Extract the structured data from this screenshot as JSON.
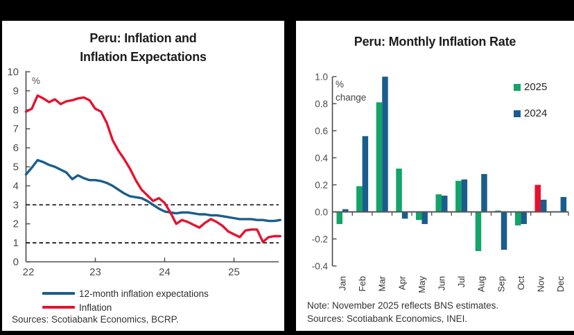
{
  "colors": {
    "background": "#000000",
    "panel": "#ffffff",
    "red": "#e8112d",
    "blue": "#1a5d8c",
    "green": "#12a468",
    "axis": "#4a4a4b",
    "zero_line": "#55565a",
    "tick_text": "#4a4a4a",
    "label_text": "#333333"
  },
  "left_panel": {
    "title_line1": "Peru: Inflation and",
    "title_line2": "Inflation Expectations",
    "axis_unit": "%",
    "source": "Sources: Scotiabank Economics, BCRP."
  },
  "right_panel": {
    "title": "Peru: Monthly Inflation Rate",
    "axis_unit_line1": "%",
    "axis_unit_line2": "change",
    "note": "Note: November 2025 reflects BNS estimates.",
    "source": "Sources: Scotiabank Economics, INEI."
  },
  "chart_data": [
    {
      "type": "line",
      "title": "Peru: Inflation and Inflation Expectations",
      "ylabel": "%",
      "ylim": [
        0,
        10
      ],
      "y_ticks": [
        0,
        1,
        2,
        3,
        4,
        5,
        6,
        7,
        8,
        9,
        10
      ],
      "x_tick_labels": [
        "22",
        "23",
        "24",
        "25"
      ],
      "x_tick_values": [
        22,
        23,
        24,
        25
      ],
      "x_start": 22.0,
      "x_interval_years": 0.08333,
      "reference_dashed_lines": [
        1,
        3
      ],
      "grid": false,
      "legend_position": "bottom",
      "series": [
        {
          "name": "12-month inflation expectations",
          "color": "#1a5d8c",
          "values": [
            4.6,
            4.95,
            5.35,
            5.25,
            5.1,
            5.0,
            4.85,
            4.7,
            4.35,
            4.55,
            4.4,
            4.3,
            4.3,
            4.25,
            4.15,
            4.0,
            3.8,
            3.6,
            3.45,
            3.4,
            3.35,
            3.2,
            3.0,
            2.8,
            2.65,
            2.6,
            2.55,
            2.6,
            2.6,
            2.55,
            2.5,
            2.5,
            2.45,
            2.45,
            2.4,
            2.35,
            2.3,
            2.25,
            2.25,
            2.25,
            2.2,
            2.2,
            2.15,
            2.15,
            2.2
          ]
        },
        {
          "name": "Inflation",
          "color": "#e8112d",
          "values": [
            7.9,
            8.05,
            8.75,
            8.6,
            8.4,
            8.55,
            8.3,
            8.45,
            8.5,
            8.6,
            8.65,
            8.5,
            8.05,
            7.9,
            7.3,
            6.4,
            5.85,
            5.4,
            4.9,
            4.3,
            3.8,
            3.5,
            3.2,
            3.35,
            3.1,
            2.6,
            2.0,
            2.2,
            2.1,
            1.95,
            1.8,
            2.05,
            2.25,
            2.1,
            1.9,
            1.6,
            1.45,
            1.3,
            1.65,
            1.7,
            1.7,
            1.05,
            1.3,
            1.35,
            1.35
          ]
        }
      ],
      "source": "Sources: Scotiabank Economics, BCRP."
    },
    {
      "type": "bar",
      "title": "Peru: Monthly Inflation Rate",
      "ylabel": "% change",
      "ylim": [
        -0.4,
        1.0
      ],
      "y_tick_labels": [
        "1.0",
        "0.8",
        "0.6",
        "0.4",
        "0.2",
        "0.0",
        "-0.2",
        "-0.4"
      ],
      "y_tick_values": [
        1.0,
        0.8,
        0.6,
        0.4,
        0.2,
        0.0,
        -0.2,
        -0.4
      ],
      "categories": [
        "Jan",
        "Feb",
        "Mar",
        "Apr",
        "May",
        "Jun",
        "Jul",
        "Aug",
        "Sep",
        "Oct",
        "Nov",
        "Dec"
      ],
      "legend_position": "top-right",
      "series": [
        {
          "name": "2025",
          "color": "#12a468",
          "values": [
            -0.09,
            0.19,
            0.81,
            0.32,
            -0.06,
            0.13,
            0.23,
            -0.29,
            0.01,
            -0.1,
            0.2,
            null
          ],
          "highlight": {
            "index": 10,
            "color": "#e8112d"
          }
        },
        {
          "name": "2024",
          "color": "#1a5d8c",
          "values": [
            0.02,
            0.56,
            1.0,
            -0.05,
            -0.09,
            0.12,
            0.24,
            0.28,
            -0.28,
            -0.09,
            0.09,
            0.11
          ]
        }
      ],
      "note": "Note: November 2025 reflects BNS estimates.",
      "source": "Sources: Scotiabank Economics, INEI."
    }
  ]
}
